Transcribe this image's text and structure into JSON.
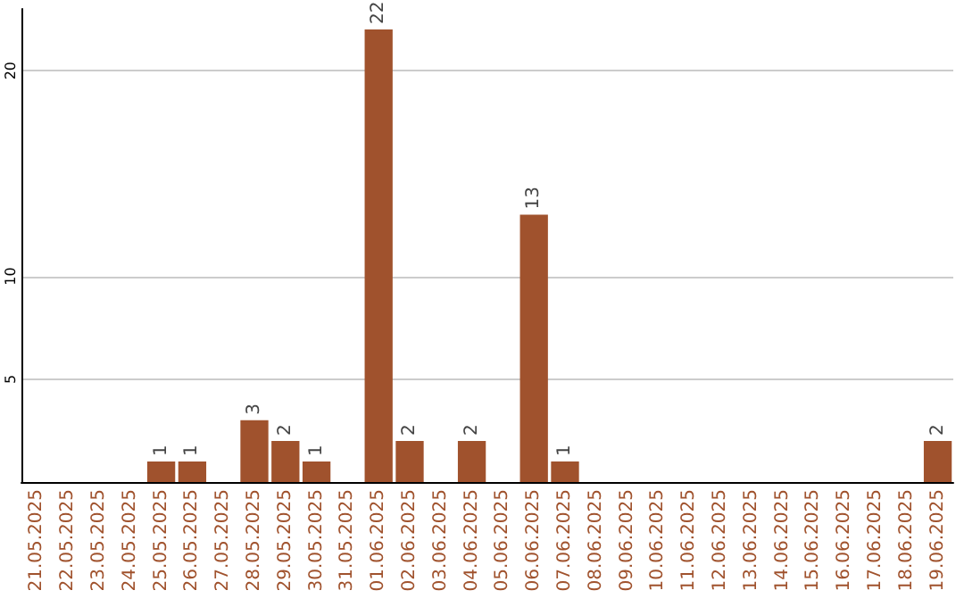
{
  "chart_data": {
    "type": "bar",
    "categories": [
      "21.05.2025",
      "22.05.2025",
      "23.05.2025",
      "24.05.2025",
      "25.05.2025",
      "26.05.2025",
      "27.05.2025",
      "28.05.2025",
      "29.05.2025",
      "30.05.2025",
      "31.05.2025",
      "01.06.2025",
      "02.06.2025",
      "03.06.2025",
      "04.06.2025",
      "05.06.2025",
      "06.06.2025",
      "07.06.2025",
      "08.06.2025",
      "09.06.2025",
      "10.06.2025",
      "11.06.2025",
      "12.06.2025",
      "13.06.2025",
      "14.06.2025",
      "15.06.2025",
      "16.06.2025",
      "17.06.2025",
      "18.06.2025",
      "19.06.2025"
    ],
    "values": [
      0,
      0,
      0,
      0,
      1,
      1,
      0,
      3,
      2,
      1,
      0,
      22,
      2,
      0,
      2,
      0,
      13,
      1,
      0,
      0,
      0,
      0,
      0,
      0,
      0,
      0,
      0,
      0,
      0,
      2
    ],
    "value_labels": [
      null,
      null,
      null,
      null,
      "1",
      "1",
      null,
      "3",
      "2",
      "1",
      null,
      "22",
      "2",
      null,
      "2",
      null,
      "13",
      "1",
      null,
      null,
      null,
      null,
      null,
      null,
      null,
      null,
      null,
      null,
      null,
      "2"
    ],
    "color": "#a0522d",
    "ylim": [
      0,
      23
    ],
    "yticks": [
      5,
      10,
      20
    ],
    "grid": "y"
  }
}
